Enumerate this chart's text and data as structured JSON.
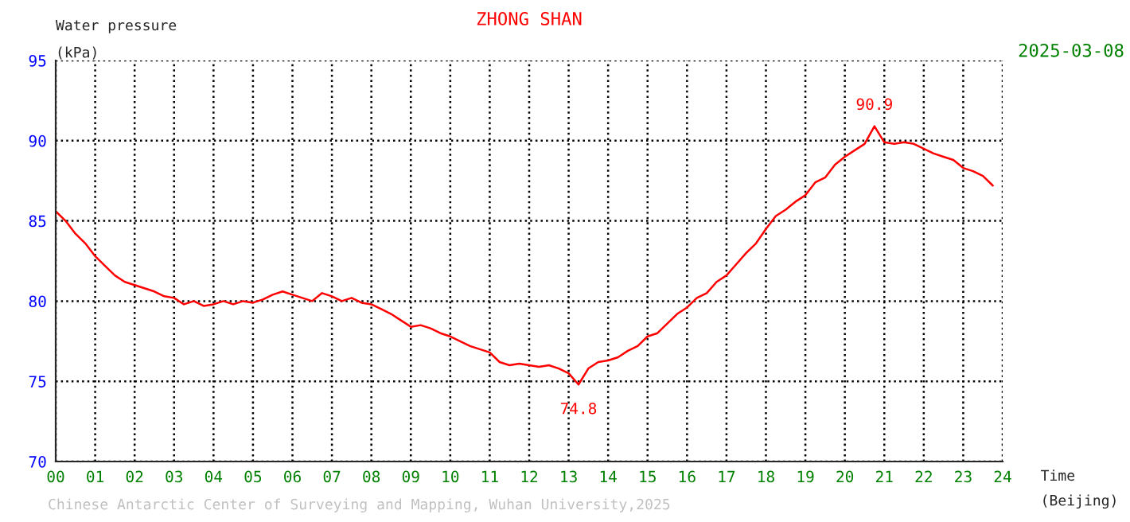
{
  "chart_data": {
    "type": "line",
    "title": "ZHONG SHAN",
    "subtitle": "2025-03-08",
    "xlabel": "Time\n(Beijing)",
    "ylabel": "Water pressure\n(kPa)",
    "annotations": [
      {
        "text": "74.8",
        "x": 13.25,
        "y": 74.8
      },
      {
        "text": "90.9",
        "x": 20.75,
        "y": 90.9
      },
      "Chinese Antarctic Center of Surveying and Mapping, Wuhan University,2025"
    ],
    "x": [
      0,
      0.25,
      0.5,
      0.75,
      1,
      1.25,
      1.5,
      1.75,
      2,
      2.25,
      2.5,
      2.75,
      3,
      3.25,
      3.5,
      3.75,
      4,
      4.25,
      4.5,
      4.75,
      5,
      5.25,
      5.5,
      5.75,
      6,
      6.25,
      6.5,
      6.75,
      7,
      7.25,
      7.5,
      7.75,
      8,
      8.25,
      8.5,
      8.75,
      9,
      9.25,
      9.5,
      9.75,
      10,
      10.25,
      10.5,
      10.75,
      11,
      11.25,
      11.5,
      11.75,
      12,
      12.25,
      12.5,
      12.75,
      13,
      13.25,
      13.5,
      13.75,
      14,
      14.25,
      14.5,
      14.75,
      15,
      15.25,
      15.5,
      15.75,
      16,
      16.25,
      16.5,
      16.75,
      17,
      17.25,
      17.5,
      17.75,
      18,
      18.25,
      18.5,
      18.75,
      19,
      19.25,
      19.5,
      19.75,
      20,
      20.25,
      20.5,
      20.75,
      21,
      21.25,
      21.5,
      21.75,
      22,
      22.25,
      22.5,
      22.75,
      23,
      23.25,
      23.5,
      23.75
    ],
    "series": [
      {
        "color": "#ff0000",
        "values": [
          85.6,
          85.0,
          84.2,
          83.6,
          82.8,
          82.2,
          81.6,
          81.2,
          81.0,
          80.8,
          80.6,
          80.3,
          80.2,
          79.8,
          80.0,
          79.7,
          79.8,
          80.0,
          79.8,
          80.0,
          79.9,
          80.1,
          80.4,
          80.6,
          80.4,
          80.2,
          80.0,
          80.5,
          80.3,
          80.0,
          80.2,
          79.9,
          79.8,
          79.5,
          79.2,
          78.8,
          78.4,
          78.5,
          78.3,
          78.0,
          77.8,
          77.5,
          77.2,
          77.0,
          76.8,
          76.2,
          76.0,
          76.1,
          76.0,
          75.9,
          76.0,
          75.8,
          75.5,
          74.8,
          75.8,
          76.2,
          76.3,
          76.5,
          76.9,
          77.2,
          77.8,
          78.0,
          78.6,
          79.2,
          79.6,
          80.2,
          80.5,
          81.2,
          81.6,
          82.3,
          83.0,
          83.6,
          84.5,
          85.3,
          85.7,
          86.2,
          86.6,
          87.4,
          87.7,
          88.5,
          89.0,
          89.4,
          89.8,
          90.9,
          89.9,
          89.8,
          89.9,
          89.8,
          89.5,
          89.2,
          89.0,
          88.8,
          88.3,
          88.1,
          87.8,
          87.2
        ]
      }
    ],
    "xlim": [
      0,
      24
    ],
    "ylim": [
      70,
      95
    ],
    "xticks": [
      {
        "value": 0,
        "label": "00"
      },
      {
        "value": 1,
        "label": "01"
      },
      {
        "value": 2,
        "label": "02"
      },
      {
        "value": 3,
        "label": "03"
      },
      {
        "value": 4,
        "label": "04"
      },
      {
        "value": 5,
        "label": "05"
      },
      {
        "value": 6,
        "label": "06"
      },
      {
        "value": 7,
        "label": "07"
      },
      {
        "value": 8,
        "label": "08"
      },
      {
        "value": 9,
        "label": "09"
      },
      10,
      11,
      12,
      13,
      14,
      15,
      16,
      17,
      18,
      19,
      20,
      21,
      22,
      23,
      24
    ],
    "yticks": [
      70,
      75,
      80,
      85,
      90,
      95
    ],
    "grid": true,
    "line_style": "solid"
  }
}
